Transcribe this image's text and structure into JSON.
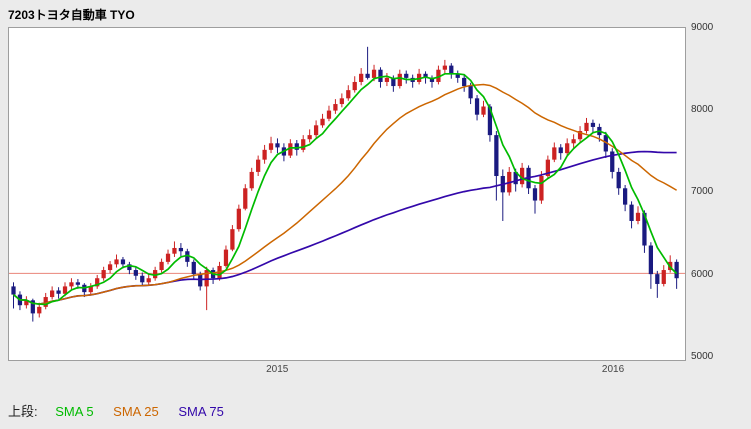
{
  "header": {
    "title": "7203トヨタ自動車 TYO"
  },
  "legend": {
    "prefix": "上段:",
    "items": [
      {
        "label": "SMA 5",
        "color": "#00bb00",
        "window": 5
      },
      {
        "label": "SMA 25",
        "color": "#cc6600",
        "window": 25
      },
      {
        "label": "SMA 75",
        "color": "#3308aa",
        "window": 75
      }
    ]
  },
  "chart_data": {
    "type": "candlestick",
    "title": "7203トヨタ自動車 TYO",
    "ylim": [
      4950,
      9010
    ],
    "y_ticks": [
      5000,
      6000,
      7000,
      8000,
      9000
    ],
    "x_ticks": [
      {
        "label": "2015",
        "index": 41
      },
      {
        "label": "2016",
        "index": 93
      }
    ],
    "price_line": {
      "value": 6010,
      "color": "#e98579"
    },
    "colors": {
      "up": "#cc2222",
      "down": "#1a1a80",
      "sma5": "#00bb00",
      "sma25": "#cc6600",
      "sma75": "#3308aa"
    },
    "legend_position": "bottom-left",
    "grid": false,
    "candles": [
      [
        5850,
        5900,
        5580,
        5750
      ],
      [
        5750,
        5790,
        5560,
        5620
      ],
      [
        5620,
        5730,
        5580,
        5680
      ],
      [
        5680,
        5700,
        5420,
        5520
      ],
      [
        5520,
        5650,
        5470,
        5600
      ],
      [
        5600,
        5770,
        5570,
        5720
      ],
      [
        5720,
        5850,
        5690,
        5800
      ],
      [
        5800,
        5840,
        5700,
        5760
      ],
      [
        5760,
        5900,
        5730,
        5850
      ],
      [
        5850,
        5950,
        5810,
        5900
      ],
      [
        5900,
        5940,
        5820,
        5870
      ],
      [
        5870,
        5890,
        5720,
        5780
      ],
      [
        5780,
        5890,
        5750,
        5850
      ],
      [
        5850,
        5990,
        5820,
        5950
      ],
      [
        5950,
        6090,
        5920,
        6050
      ],
      [
        6050,
        6160,
        6010,
        6120
      ],
      [
        6120,
        6240,
        6080,
        6180
      ],
      [
        6180,
        6210,
        6070,
        6120
      ],
      [
        6120,
        6150,
        6000,
        6050
      ],
      [
        6050,
        6090,
        5930,
        5980
      ],
      [
        5980,
        6020,
        5850,
        5900
      ],
      [
        5900,
        6000,
        5860,
        5950
      ],
      [
        5950,
        6090,
        5920,
        6050
      ],
      [
        6050,
        6190,
        6020,
        6150
      ],
      [
        6150,
        6300,
        6120,
        6250
      ],
      [
        6250,
        6400,
        6210,
        6320
      ],
      [
        6320,
        6380,
        6220,
        6280
      ],
      [
        6280,
        6310,
        6090,
        6150
      ],
      [
        6150,
        6180,
        5940,
        6000
      ],
      [
        6000,
        6030,
        5800,
        5850
      ],
      [
        5850,
        6090,
        5560,
        6050
      ],
      [
        6050,
        6080,
        5880,
        5950
      ],
      [
        5950,
        6150,
        5920,
        6100
      ],
      [
        6100,
        6350,
        6080,
        6300
      ],
      [
        6300,
        6600,
        6280,
        6550
      ],
      [
        6550,
        6850,
        6520,
        6800
      ],
      [
        6800,
        7100,
        6780,
        7050
      ],
      [
        7050,
        7300,
        7020,
        7250
      ],
      [
        7250,
        7450,
        7200,
        7400
      ],
      [
        7400,
        7580,
        7350,
        7520
      ],
      [
        7520,
        7680,
        7480,
        7600
      ],
      [
        7600,
        7660,
        7480,
        7550
      ],
      [
        7550,
        7600,
        7380,
        7450
      ],
      [
        7450,
        7650,
        7420,
        7600
      ],
      [
        7600,
        7640,
        7450,
        7520
      ],
      [
        7520,
        7700,
        7490,
        7650
      ],
      [
        7650,
        7770,
        7610,
        7700
      ],
      [
        7700,
        7880,
        7670,
        7820
      ],
      [
        7820,
        7960,
        7790,
        7900
      ],
      [
        7900,
        8060,
        7870,
        8000
      ],
      [
        8000,
        8140,
        7960,
        8080
      ],
      [
        8080,
        8210,
        8040,
        8150
      ],
      [
        8150,
        8310,
        8120,
        8250
      ],
      [
        8250,
        8420,
        8220,
        8350
      ],
      [
        8350,
        8520,
        8310,
        8450
      ],
      [
        8450,
        8780,
        8380,
        8400
      ],
      [
        8400,
        8560,
        8360,
        8500
      ],
      [
        8500,
        8530,
        8280,
        8350
      ],
      [
        8350,
        8460,
        8300,
        8400
      ],
      [
        8400,
        8430,
        8230,
        8300
      ],
      [
        8300,
        8500,
        8270,
        8450
      ],
      [
        8450,
        8490,
        8330,
        8400
      ],
      [
        8400,
        8440,
        8280,
        8350
      ],
      [
        8350,
        8510,
        8320,
        8450
      ],
      [
        8450,
        8480,
        8330,
        8400
      ],
      [
        8400,
        8430,
        8280,
        8350
      ],
      [
        8350,
        8550,
        8320,
        8500
      ],
      [
        8500,
        8620,
        8460,
        8550
      ],
      [
        8550,
        8580,
        8390,
        8450
      ],
      [
        8450,
        8490,
        8340,
        8400
      ],
      [
        8400,
        8440,
        8230,
        8300
      ],
      [
        8300,
        8340,
        8080,
        8150
      ],
      [
        8150,
        8190,
        7880,
        7950
      ],
      [
        7950,
        8120,
        7920,
        8050
      ],
      [
        8050,
        8080,
        7620,
        7700
      ],
      [
        7700,
        7750,
        6900,
        7200
      ],
      [
        7200,
        7280,
        6650,
        7000
      ],
      [
        7000,
        7310,
        6960,
        7250
      ],
      [
        7250,
        7290,
        7010,
        7100
      ],
      [
        7100,
        7360,
        7060,
        7300
      ],
      [
        7300,
        7330,
        6980,
        7050
      ],
      [
        7050,
        7090,
        6740,
        6900
      ],
      [
        6900,
        7260,
        6860,
        7200
      ],
      [
        7200,
        7450,
        7170,
        7400
      ],
      [
        7400,
        7610,
        7370,
        7550
      ],
      [
        7550,
        7590,
        7400,
        7480
      ],
      [
        7480,
        7660,
        7450,
        7600
      ],
      [
        7600,
        7710,
        7540,
        7650
      ],
      [
        7650,
        7810,
        7620,
        7750
      ],
      [
        7750,
        7910,
        7720,
        7850
      ],
      [
        7850,
        7890,
        7720,
        7800
      ],
      [
        7800,
        7840,
        7620,
        7700
      ],
      [
        7700,
        7740,
        7420,
        7500
      ],
      [
        7500,
        7540,
        7170,
        7250
      ],
      [
        7250,
        7300,
        6970,
        7050
      ],
      [
        7050,
        7090,
        6770,
        6850
      ],
      [
        6850,
        6890,
        6560,
        6650
      ],
      [
        6650,
        6830,
        6610,
        6750
      ],
      [
        6750,
        6780,
        6260,
        6350
      ],
      [
        6350,
        6390,
        5820,
        6000
      ],
      [
        6000,
        6040,
        5710,
        5880
      ],
      [
        5880,
        6110,
        5850,
        6050
      ],
      [
        6050,
        6230,
        6020,
        6150
      ],
      [
        6150,
        6180,
        5820,
        5950
      ]
    ]
  }
}
